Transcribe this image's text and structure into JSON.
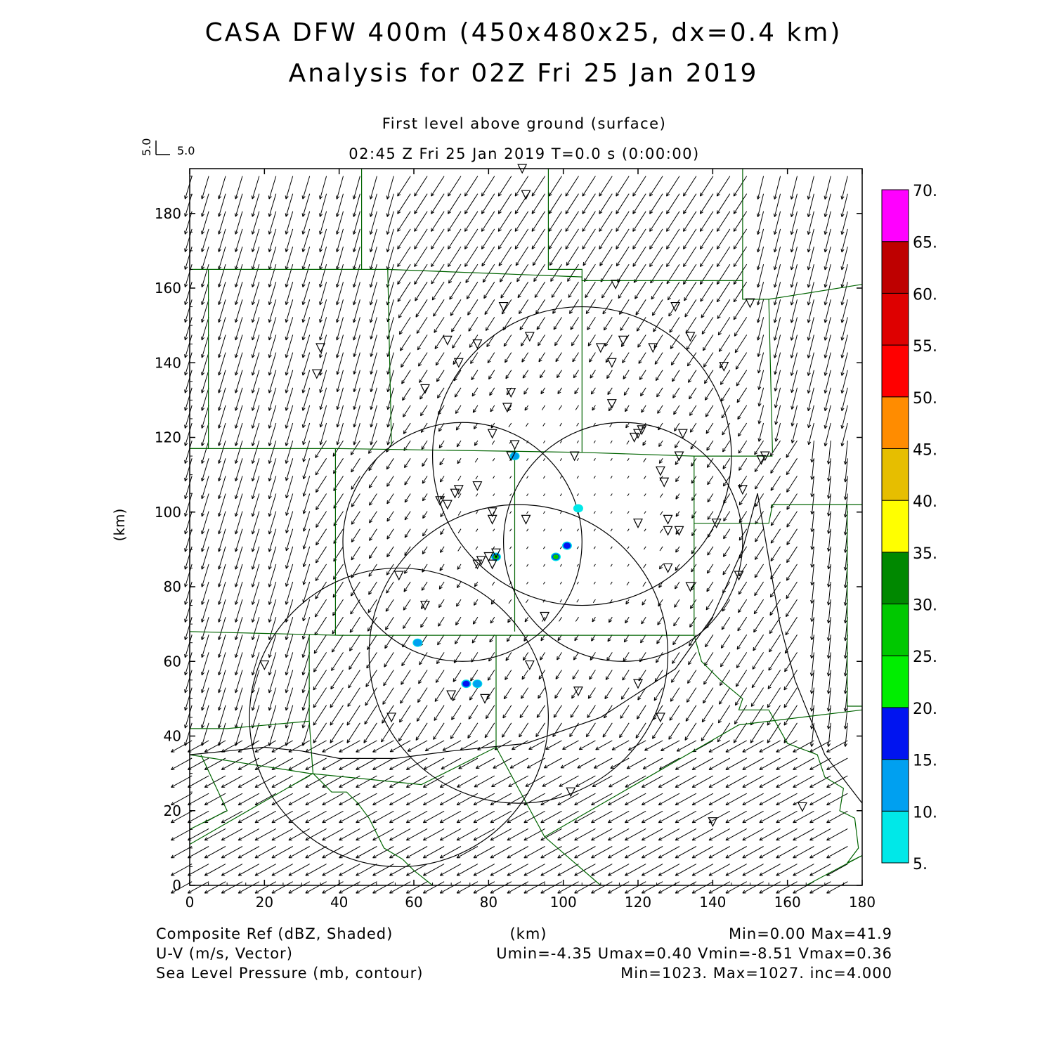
{
  "header": {
    "title_line1": "CASA DFW 400m (450x480x25, dx=0.4 km)",
    "title_line2": "Analysis for 02Z Fri 25 Jan 2019",
    "level_label": "First level above ground (surface)",
    "time_label": "02:45 Z Fri 25 Jan 2019    T=0.0 s (0:00:00)"
  },
  "vector_key": {
    "v_label": "5.0",
    "u_label": "5.0"
  },
  "axes": {
    "x_ticks": [
      "0",
      "20",
      "40",
      "60",
      "80",
      "100",
      "120",
      "140",
      "160",
      "180"
    ],
    "y_ticks": [
      "0",
      "20",
      "40",
      "60",
      "80",
      "100",
      "120",
      "140",
      "160",
      "180"
    ],
    "x_label": "(km)",
    "y_label": "(km)",
    "x_range": [
      0,
      180
    ],
    "y_range": [
      0,
      192
    ]
  },
  "colorbar": {
    "labels": [
      "5.",
      "10.",
      "15.",
      "20.",
      "25.",
      "30.",
      "35.",
      "40.",
      "45.",
      "50.",
      "55.",
      "60.",
      "65.",
      "70."
    ],
    "colors": [
      "#00e8e8",
      "#00a0f0",
      "#0014f0",
      "#00ee00",
      "#00c800",
      "#008800",
      "#ffff00",
      "#e6be00",
      "#ff8c00",
      "#ff0000",
      "#de0000",
      "#be0000",
      "#ff00ff"
    ]
  },
  "footer": {
    "left1": "Composite Ref (dBZ, Shaded)",
    "center1": "(km)",
    "right1": "Min=0.00 Max=41.9",
    "left2": "U-V (m/s, Vector)",
    "right2": "Umin=-4.35 Umax=0.40 Vmin=-8.51 Vmax=0.36",
    "left3": "Sea Level Pressure (mb, contour)",
    "right3": "Min=1023. Max=1027. inc=4.000"
  },
  "chart_data": {
    "type": "map",
    "variables": {
      "shaded": "Composite Ref (dBZ, Shaded)",
      "vector": "U-V (m/s, Vector)",
      "contour": "Sea Level Pressure (mb, contour)"
    },
    "reflectivity_min": 0.0,
    "reflectivity_max": 41.9,
    "umin": -4.35,
    "umax": 0.4,
    "vmin": -8.51,
    "vmax": 0.36,
    "slp_min": 1023,
    "slp_max": 1027,
    "slp_inc": 4.0,
    "radar_rings": [
      {
        "cx": 105,
        "cy": 115,
        "r": 40
      },
      {
        "cx": 88,
        "cy": 62,
        "r": 40
      },
      {
        "cx": 56,
        "cy": 45,
        "r": 40
      },
      {
        "cx": 116,
        "cy": 92,
        "r": 32
      },
      {
        "cx": 73,
        "cy": 92,
        "r": 32
      }
    ],
    "reflectivity_cells": [
      {
        "x": 87,
        "y": 115,
        "dbz": 12
      },
      {
        "x": 104,
        "y": 101,
        "dbz": 8
      },
      {
        "x": 101,
        "y": 91,
        "dbz": 18
      },
      {
        "x": 98,
        "y": 88,
        "dbz": 28
      },
      {
        "x": 82,
        "y": 88,
        "dbz": 41.9
      },
      {
        "x": 61,
        "y": 65,
        "dbz": 10
      },
      {
        "x": 74,
        "y": 54,
        "dbz": 16
      },
      {
        "x": 77,
        "y": 54,
        "dbz": 10
      }
    ],
    "stations": [
      [
        89,
        192
      ],
      [
        90,
        185
      ],
      [
        35,
        144
      ],
      [
        34,
        137
      ],
      [
        63,
        133
      ],
      [
        69,
        146
      ],
      [
        72,
        140
      ],
      [
        77,
        145
      ],
      [
        84,
        155
      ],
      [
        91,
        147
      ],
      [
        86,
        132
      ],
      [
        85,
        128
      ],
      [
        81,
        121
      ],
      [
        86,
        115
      ],
      [
        87,
        118
      ],
      [
        103,
        115
      ],
      [
        114,
        161
      ],
      [
        113,
        140
      ],
      [
        116,
        146
      ],
      [
        110,
        144
      ],
      [
        124,
        144
      ],
      [
        130,
        155
      ],
      [
        134,
        147
      ],
      [
        143,
        139
      ],
      [
        113,
        129
      ],
      [
        121,
        122
      ],
      [
        120,
        121
      ],
      [
        119,
        120
      ],
      [
        132,
        121
      ],
      [
        131,
        115
      ],
      [
        126,
        111
      ],
      [
        127,
        108
      ],
      [
        153,
        114
      ],
      [
        154,
        115
      ],
      [
        148,
        106
      ],
      [
        150,
        156
      ],
      [
        67,
        103
      ],
      [
        69,
        102
      ],
      [
        71,
        105
      ],
      [
        72,
        106
      ],
      [
        77,
        107
      ],
      [
        81,
        100
      ],
      [
        81,
        98
      ],
      [
        90,
        98
      ],
      [
        82,
        89
      ],
      [
        80,
        88
      ],
      [
        78,
        87
      ],
      [
        77,
        86
      ],
      [
        81,
        86
      ],
      [
        120,
        97
      ],
      [
        128,
        98
      ],
      [
        128,
        95
      ],
      [
        131,
        95
      ],
      [
        141,
        97
      ],
      [
        128,
        85
      ],
      [
        134,
        80
      ],
      [
        147,
        83
      ],
      [
        56,
        83
      ],
      [
        63,
        75
      ],
      [
        95,
        72
      ],
      [
        91,
        59
      ],
      [
        20,
        59
      ],
      [
        104,
        52
      ],
      [
        120,
        54
      ],
      [
        126,
        45
      ],
      [
        70,
        51
      ],
      [
        79,
        50
      ],
      [
        54,
        45
      ],
      [
        102,
        25
      ],
      [
        140,
        17
      ],
      [
        164,
        21
      ]
    ]
  }
}
